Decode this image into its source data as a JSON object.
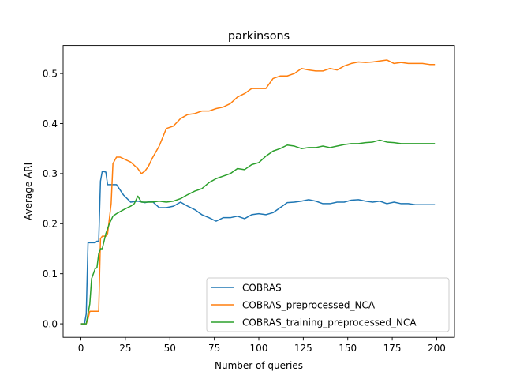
{
  "chart_data": {
    "type": "line",
    "title": "parkinsons",
    "xlabel": "Number of queries",
    "ylabel": "Average ARI",
    "xlim": [
      -10,
      210
    ],
    "ylim": [
      -0.027,
      0.556
    ],
    "xticks": [
      0,
      25,
      50,
      75,
      100,
      125,
      150,
      175,
      200
    ],
    "yticks": [
      0.0,
      0.1,
      0.2,
      0.3,
      0.4,
      0.5
    ],
    "xtick_labels": [
      "0",
      "25",
      "50",
      "75",
      "100",
      "125",
      "150",
      "175",
      "200"
    ],
    "ytick_labels": [
      "0.0",
      "0.1",
      "0.2",
      "0.3",
      "0.4",
      "0.5"
    ],
    "grid": false,
    "legend_position": "lower-right",
    "series": [
      {
        "name": "COBRAS",
        "color": "#1f77b4",
        "x": [
          0,
          2,
          3,
          4,
          8,
          9,
          10,
          11,
          12,
          14,
          15,
          20,
          24,
          28,
          32,
          36,
          40,
          44,
          48,
          52,
          56,
          60,
          64,
          68,
          72,
          76,
          80,
          84,
          88,
          92,
          96,
          100,
          104,
          108,
          112,
          116,
          120,
          124,
          128,
          132,
          136,
          140,
          144,
          148,
          152,
          156,
          160,
          164,
          168,
          172,
          176,
          180,
          184,
          188,
          192,
          196,
          199
        ],
        "y": [
          0.0,
          0.0,
          0.02,
          0.162,
          0.162,
          0.165,
          0.165,
          0.285,
          0.305,
          0.303,
          0.278,
          0.278,
          0.257,
          0.243,
          0.245,
          0.242,
          0.245,
          0.232,
          0.232,
          0.235,
          0.243,
          0.235,
          0.228,
          0.218,
          0.212,
          0.205,
          0.212,
          0.212,
          0.215,
          0.21,
          0.218,
          0.22,
          0.218,
          0.222,
          0.232,
          0.242,
          0.243,
          0.245,
          0.248,
          0.245,
          0.24,
          0.24,
          0.243,
          0.243,
          0.247,
          0.248,
          0.245,
          0.243,
          0.245,
          0.24,
          0.243,
          0.24,
          0.24,
          0.238,
          0.238,
          0.238,
          0.238
        ]
      },
      {
        "name": "COBRAS_preprocessed_NCA",
        "color": "#ff7f0e",
        "x": [
          0,
          3,
          4,
          5,
          6,
          8,
          10,
          11,
          12,
          14,
          15,
          17,
          18,
          20,
          22,
          25,
          28,
          32,
          34,
          36,
          38,
          40,
          44,
          48,
          52,
          56,
          60,
          64,
          68,
          72,
          76,
          80,
          84,
          88,
          92,
          96,
          100,
          104,
          108,
          112,
          116,
          120,
          124,
          128,
          132,
          136,
          140,
          144,
          148,
          152,
          156,
          160,
          164,
          168,
          172,
          176,
          180,
          184,
          188,
          192,
          196,
          199
        ],
        "y": [
          0.0,
          0.0,
          0.01,
          0.025,
          0.025,
          0.025,
          0.025,
          0.17,
          0.175,
          0.175,
          0.18,
          0.24,
          0.32,
          0.333,
          0.333,
          0.328,
          0.323,
          0.31,
          0.3,
          0.305,
          0.315,
          0.33,
          0.355,
          0.39,
          0.395,
          0.41,
          0.418,
          0.42,
          0.425,
          0.425,
          0.43,
          0.433,
          0.44,
          0.453,
          0.46,
          0.47,
          0.47,
          0.47,
          0.49,
          0.495,
          0.495,
          0.5,
          0.51,
          0.507,
          0.505,
          0.505,
          0.51,
          0.507,
          0.515,
          0.52,
          0.523,
          0.522,
          0.523,
          0.525,
          0.527,
          0.52,
          0.522,
          0.52,
          0.52,
          0.52,
          0.518,
          0.518
        ]
      },
      {
        "name": "COBRAS_training_preprocessed_NCA",
        "color": "#2ca02c",
        "x": [
          0,
          3,
          4,
          5,
          6,
          8,
          9,
          10,
          11,
          12,
          14,
          16,
          18,
          20,
          24,
          28,
          30,
          32,
          34,
          36,
          40,
          44,
          48,
          52,
          56,
          60,
          64,
          68,
          72,
          76,
          80,
          84,
          88,
          92,
          96,
          100,
          104,
          108,
          112,
          116,
          120,
          124,
          128,
          132,
          136,
          140,
          144,
          148,
          152,
          156,
          160,
          164,
          168,
          172,
          176,
          180,
          184,
          188,
          192,
          196,
          199
        ],
        "y": [
          0.0,
          0.0,
          0.02,
          0.04,
          0.09,
          0.11,
          0.112,
          0.14,
          0.15,
          0.15,
          0.18,
          0.2,
          0.215,
          0.22,
          0.228,
          0.235,
          0.24,
          0.255,
          0.243,
          0.243,
          0.243,
          0.245,
          0.243,
          0.245,
          0.25,
          0.258,
          0.265,
          0.27,
          0.282,
          0.29,
          0.295,
          0.3,
          0.31,
          0.308,
          0.318,
          0.322,
          0.335,
          0.345,
          0.35,
          0.357,
          0.355,
          0.35,
          0.352,
          0.352,
          0.355,
          0.352,
          0.355,
          0.358,
          0.36,
          0.36,
          0.362,
          0.363,
          0.367,
          0.363,
          0.362,
          0.36,
          0.36,
          0.36,
          0.36,
          0.36,
          0.36
        ]
      }
    ]
  }
}
